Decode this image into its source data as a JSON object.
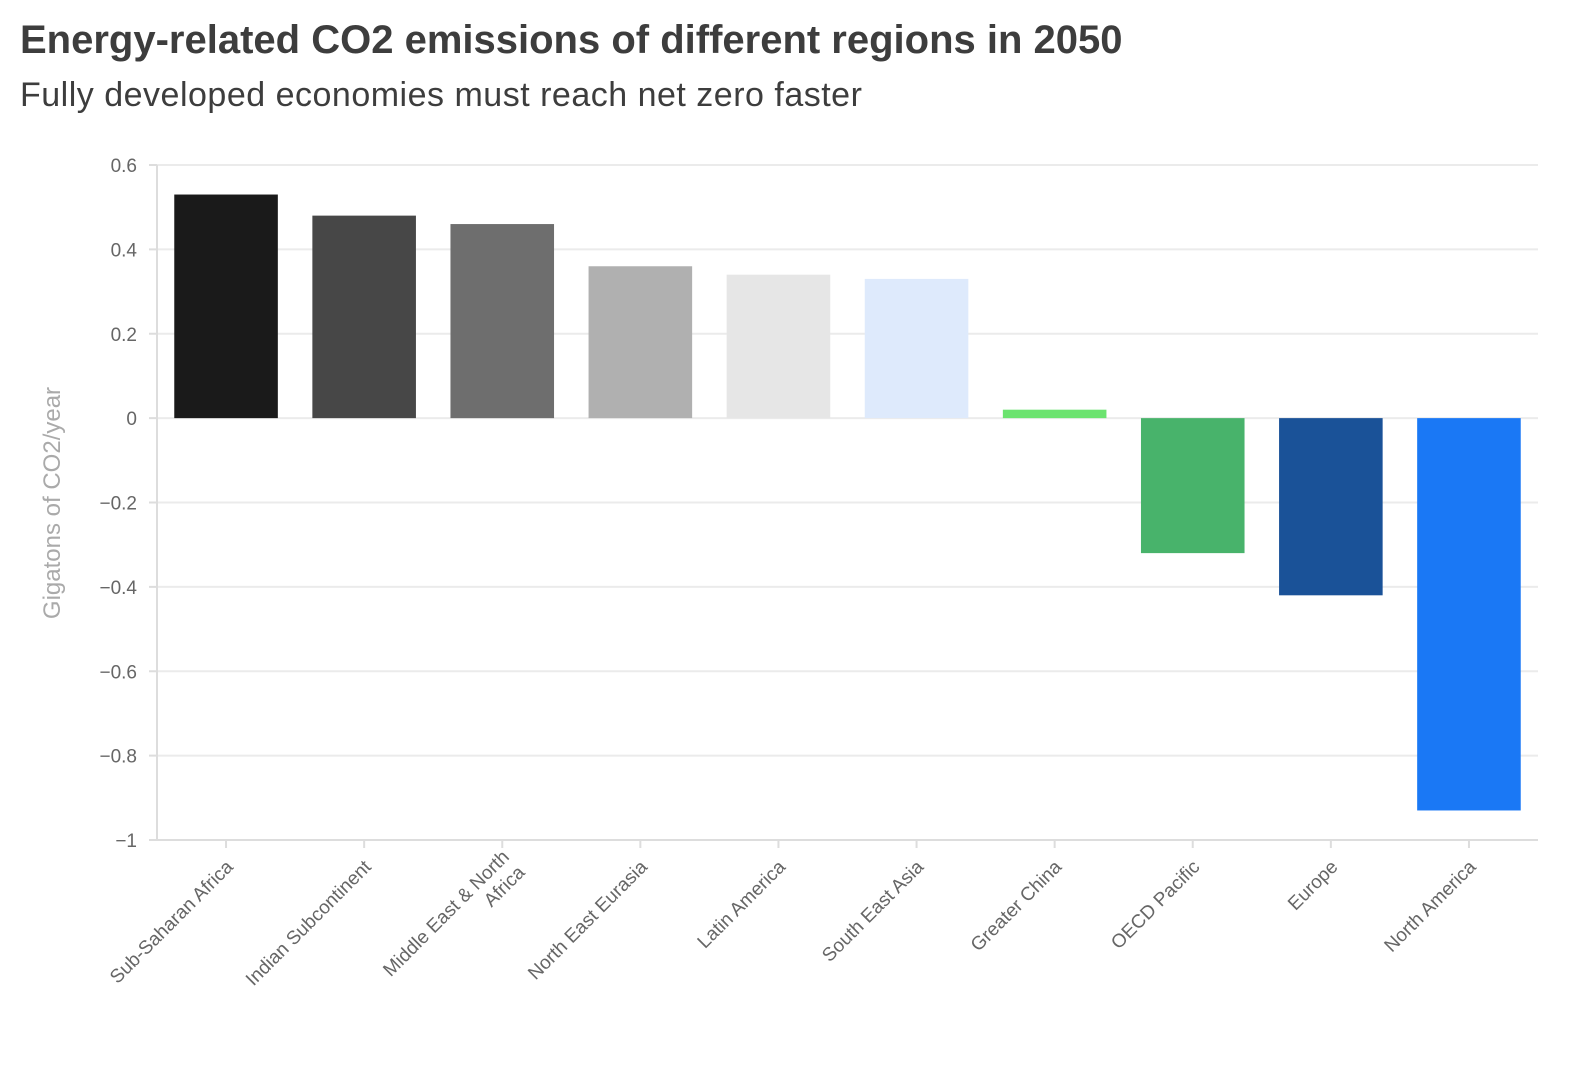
{
  "chart_data": {
    "type": "bar",
    "title": "Energy-related CO2 emissions of different regions in 2050",
    "subtitle": "Fully developed economies must reach net zero faster",
    "xlabel": "",
    "ylabel": "Gigatons of CO2/year",
    "ylim": [
      -1,
      0.6
    ],
    "yticks": [
      0.6,
      0.4,
      0.2,
      0,
      -0.2,
      -0.4,
      -0.6,
      -0.8,
      -1
    ],
    "ytick_labels": [
      "0.6",
      "0.4",
      "0.2",
      "0",
      "−0.2",
      "−0.4",
      "−0.6",
      "−0.8",
      "−1"
    ],
    "grid": true,
    "categories": [
      "Sub-Saharan Africa",
      "Indian Subcontinent",
      "Middle East & North Africa",
      "North East Eurasia",
      "Latin America",
      "South East Asia",
      "Greater China",
      "OECD Pacific",
      "Europe",
      "North America"
    ],
    "category_lines": [
      [
        "Sub-Saharan Africa"
      ],
      [
        "Indian Subcontinent"
      ],
      [
        "Middle East & North",
        "Africa"
      ],
      [
        "North East Eurasia"
      ],
      [
        "Latin America"
      ],
      [
        "South East Asia"
      ],
      [
        "Greater China"
      ],
      [
        "OECD Pacific"
      ],
      [
        "Europe"
      ],
      [
        "North America"
      ]
    ],
    "values": [
      0.53,
      0.48,
      0.46,
      0.36,
      0.34,
      0.33,
      0.02,
      -0.32,
      -0.42,
      -0.93
    ],
    "colors": [
      "#1a1a1a",
      "#474747",
      "#6e6e6e",
      "#b0b0b0",
      "#e6e6e6",
      "#deeafc",
      "#6be36f",
      "#48b36b",
      "#1a5298",
      "#1a78f5"
    ]
  }
}
